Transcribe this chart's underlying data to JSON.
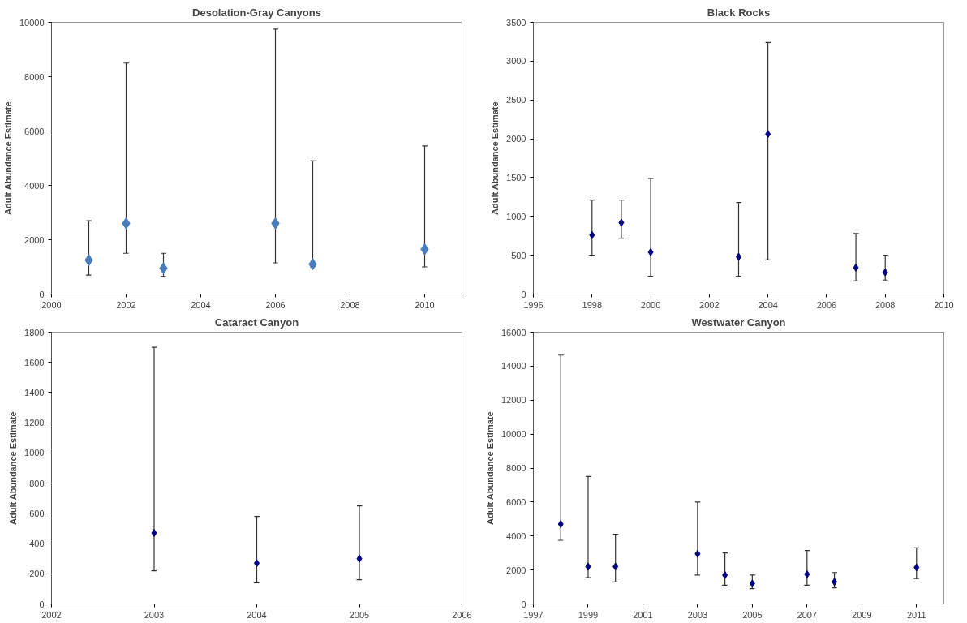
{
  "chart_data": [
    {
      "type": "scatter",
      "title": "Desolation-Gray Canyons",
      "ylabel": "Adult Abundance Estimate",
      "marker": "diamond",
      "grid": false,
      "color": "#4a7ebb",
      "x": [
        2001,
        2002,
        2003,
        2006,
        2007,
        2010
      ],
      "values": [
        1250,
        2600,
        950,
        2600,
        1100,
        1650
      ],
      "errors": [
        [
          700,
          2700
        ],
        [
          1500,
          8500
        ],
        [
          650,
          1500
        ],
        [
          1150,
          9750
        ],
        [
          1000,
          4900
        ],
        [
          1000,
          5450
        ]
      ],
      "xlim": [
        2000,
        2011
      ],
      "xticks": [
        2000,
        2002,
        2004,
        2006,
        2008,
        2010
      ],
      "ylim": [
        0,
        10000
      ],
      "yticks": [
        0,
        2000,
        4000,
        6000,
        8000,
        10000
      ]
    },
    {
      "type": "scatter",
      "title": "Black Rocks",
      "ylabel": "Adult Abundance Estimate",
      "marker": "diamond",
      "grid": false,
      "color": "#000080",
      "x": [
        1998,
        1999,
        2000,
        2003,
        2004,
        2007,
        2008
      ],
      "values": [
        760,
        920,
        540,
        480,
        2060,
        340,
        280
      ],
      "errors": [
        [
          500,
          1210
        ],
        [
          720,
          1210
        ],
        [
          230,
          1490
        ],
        [
          230,
          1180
        ],
        [
          440,
          3240
        ],
        [
          170,
          780
        ],
        [
          180,
          500
        ]
      ],
      "xlim": [
        1996,
        2010
      ],
      "xticks": [
        1996,
        1998,
        2000,
        2002,
        2004,
        2006,
        2008,
        2010
      ],
      "ylim": [
        0,
        3500
      ],
      "yticks": [
        0,
        500,
        1000,
        1500,
        2000,
        2500,
        3000,
        3500
      ]
    },
    {
      "type": "scatter",
      "title": "Cataract Canyon",
      "ylabel": "Adult Abundance Estimate",
      "marker": "diamond",
      "grid": false,
      "color": "#000080",
      "x": [
        2003,
        2004,
        2005
      ],
      "values": [
        470,
        270,
        300
      ],
      "errors": [
        [
          220,
          1700
        ],
        [
          140,
          580
        ],
        [
          160,
          650
        ]
      ],
      "xlim": [
        2002,
        2006
      ],
      "xticks": [
        2002,
        2003,
        2004,
        2005,
        2006
      ],
      "ylim": [
        0,
        1800
      ],
      "yticks": [
        0,
        200,
        400,
        600,
        800,
        1000,
        1200,
        1400,
        1600,
        1800
      ]
    },
    {
      "type": "scatter",
      "title": "Westwater Canyon",
      "ylabel": "Adult Abundance Estimate",
      "marker": "diamond",
      "grid": false,
      "color": "#000080",
      "x": [
        1998,
        1999,
        2000,
        2003,
        2004,
        2005,
        2007,
        2008,
        2011
      ],
      "values": [
        4700,
        2200,
        2200,
        2950,
        1700,
        1200,
        1750,
        1300,
        2150
      ],
      "errors": [
        [
          3750,
          14650
        ],
        [
          1550,
          7500
        ],
        [
          1300,
          4100
        ],
        [
          1700,
          6000
        ],
        [
          1100,
          3000
        ],
        [
          900,
          1700
        ],
        [
          1100,
          3150
        ],
        [
          950,
          1850
        ],
        [
          1500,
          3300
        ]
      ],
      "xlim": [
        1997,
        2012
      ],
      "xticks": [
        1997,
        1999,
        2001,
        2003,
        2005,
        2007,
        2009,
        2011
      ],
      "ylim": [
        0,
        16000
      ],
      "yticks": [
        0,
        2000,
        4000,
        6000,
        8000,
        10000,
        12000,
        14000,
        16000
      ]
    }
  ]
}
